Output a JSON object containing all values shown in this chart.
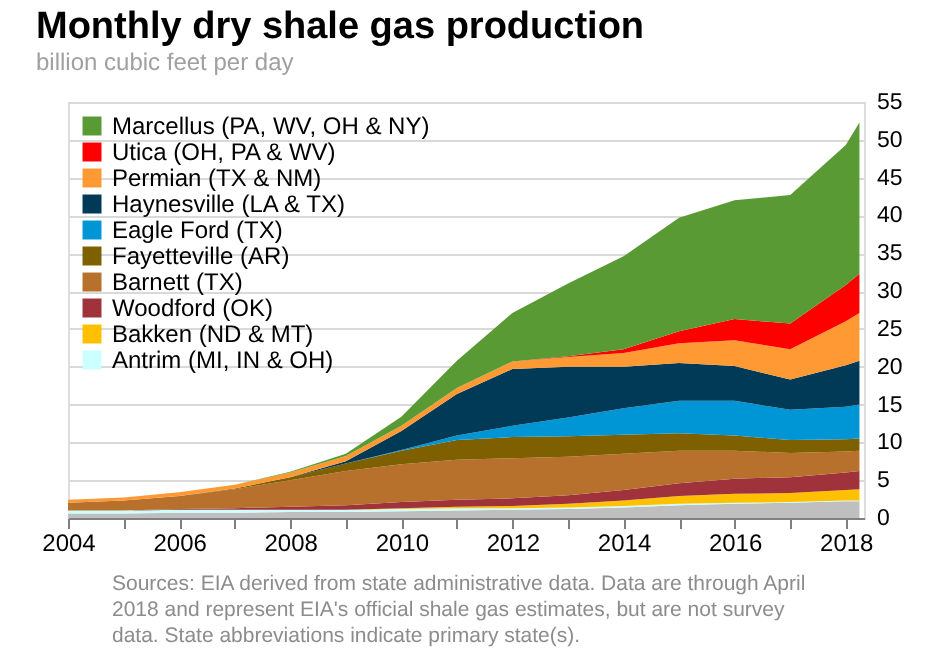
{
  "chart_data": {
    "type": "area",
    "stacked": true,
    "title": "Monthly dry shale gas production",
    "subtitle": "billion cubic feet per day",
    "x": [
      "2004-01",
      "2005-01",
      "2006-01",
      "2007-01",
      "2008-01",
      "2009-01",
      "2010-01",
      "2011-01",
      "2012-01",
      "2013-01",
      "2014-01",
      "2015-01",
      "2016-01",
      "2017-01",
      "2018-01",
      "2018-04"
    ],
    "series": [
      {
        "color": "#bfbfbf",
        "values": [
          0.6,
          0.6,
          0.7,
          0.7,
          0.8,
          0.8,
          0.9,
          1.0,
          1.1,
          1.2,
          1.4,
          1.7,
          1.9,
          2.0,
          2.2,
          2.2
        ]
      },
      {
        "name": "Antrim (MI, IN & OH)",
        "color": "#ccffff",
        "values": [
          0.4,
          0.4,
          0.4,
          0.4,
          0.3,
          0.3,
          0.3,
          0.3,
          0.2,
          0.2,
          0.2,
          0.2,
          0.1,
          0.1,
          0.1,
          0.1
        ]
      },
      {
        "name": "Bakken (ND & MT)",
        "color": "#ffc000",
        "values": [
          0,
          0,
          0,
          0,
          0,
          0,
          0.1,
          0.2,
          0.3,
          0.5,
          0.7,
          1.0,
          1.2,
          1.2,
          1.4,
          1.5
        ]
      },
      {
        "name": "Woodford (OK)",
        "color": "#a0323c",
        "values": [
          0,
          0,
          0.1,
          0.2,
          0.4,
          0.6,
          0.8,
          0.9,
          1.0,
          1.1,
          1.4,
          1.7,
          2.0,
          2.1,
          2.3,
          2.4
        ]
      },
      {
        "name": "Barnett (TX)",
        "color": "#b8702d",
        "values": [
          1.0,
          1.3,
          1.7,
          2.5,
          3.5,
          4.5,
          5.0,
          5.3,
          5.3,
          5.1,
          4.8,
          4.3,
          3.7,
          3.2,
          2.8,
          2.7
        ]
      },
      {
        "name": "Fayetteville (AR)",
        "color": "#7f6000",
        "values": [
          0,
          0,
          0,
          0.1,
          0.4,
          1.0,
          1.8,
          2.6,
          2.8,
          2.7,
          2.5,
          2.3,
          2.0,
          1.7,
          1.6,
          1.6
        ]
      },
      {
        "name": "Eagle Ford (TX)",
        "color": "#0096d6",
        "values": [
          0,
          0,
          0,
          0,
          0,
          0,
          0.1,
          0.6,
          1.5,
          2.5,
          3.5,
          4.3,
          4.6,
          4.0,
          4.3,
          4.5
        ]
      },
      {
        "name": "Haynesville (LA & TX)",
        "color": "#003a57",
        "values": [
          0,
          0,
          0,
          0,
          0,
          0.3,
          2.5,
          5.5,
          7.5,
          6.7,
          5.5,
          5.0,
          4.6,
          4.0,
          5.5,
          5.8
        ]
      },
      {
        "name": "Permian (TX & NM)",
        "color": "#ff9933",
        "values": [
          0.4,
          0.4,
          0.5,
          0.5,
          0.6,
          0.7,
          0.7,
          0.8,
          1.0,
          1.3,
          1.8,
          2.6,
          3.4,
          4.0,
          5.8,
          6.3
        ]
      },
      {
        "name": "Utica (OH, PA & WV)",
        "color": "#ff0000",
        "values": [
          0,
          0,
          0,
          0,
          0,
          0,
          0,
          0,
          0,
          0.1,
          0.5,
          1.6,
          2.8,
          3.4,
          4.8,
          5.2
        ]
      },
      {
        "name": "Marcellus (PA, WV, OH & NY)",
        "color": "#5a9a35",
        "values": [
          0,
          0,
          0,
          0,
          0.1,
          0.3,
          1.2,
          3.6,
          6.4,
          9.6,
          12.3,
          15.0,
          15.7,
          17.0,
          18.5,
          20.0
        ]
      }
    ],
    "xlim": [
      "2004-01",
      "2018-05"
    ],
    "xticks": [
      "2004",
      {
        "value": "2005",
        "label": null
      },
      "2006",
      {
        "value": "2007",
        "label": null
      },
      "2008",
      {
        "value": "2009",
        "label": null
      },
      "2010",
      {
        "value": "2011",
        "label": null
      },
      "2012",
      {
        "value": "2013",
        "label": null
      },
      "2014",
      {
        "value": "2015",
        "label": null
      },
      "2016",
      {
        "value": "2017",
        "label": null
      },
      "2018"
    ],
    "ylim": [
      0,
      55
    ],
    "yticks": [
      0,
      5,
      10,
      15,
      20,
      25,
      30,
      35,
      40,
      45,
      50,
      55
    ],
    "grid": "y",
    "legend": "top left",
    "annotations": [
      "Sources: EIA derived from state administrative data. Data are through April 2018 and represent EIA's official shale gas estimates, but are not survey data. State abbreviations indicate primary state(s)."
    ]
  }
}
